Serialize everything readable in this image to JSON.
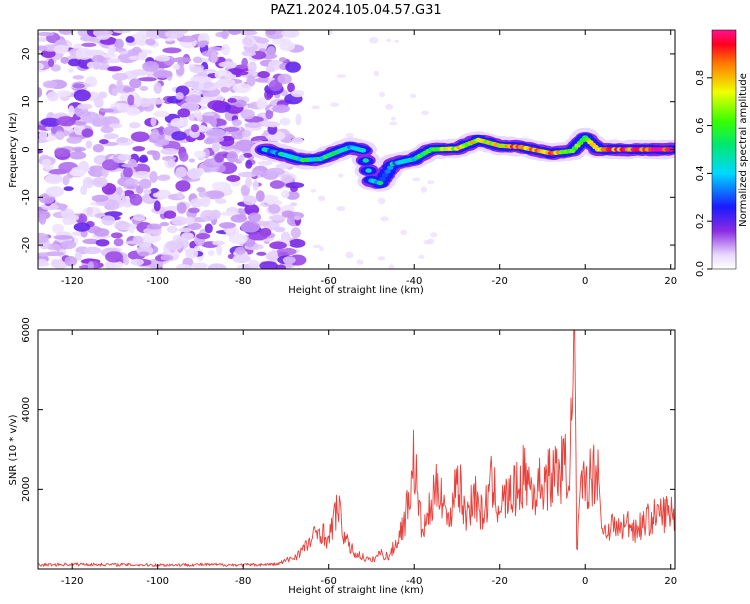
{
  "title": "PAZ1.2024.105.04.57.G31",
  "chart_data": [
    {
      "type": "heatmap",
      "xlabel": "Height of straight line (km)",
      "ylabel": "Frequency (Hz)",
      "xlim": [
        -128,
        21
      ],
      "ylim": [
        -25,
        25
      ],
      "xticks": [
        -120,
        -100,
        -80,
        -60,
        -40,
        -20,
        0,
        20
      ],
      "yticks": [
        -20,
        -10,
        0,
        10,
        20
      ],
      "colorbar": {
        "label": "Normalized spectral amplitude",
        "range": [
          0,
          1
        ],
        "ticks": [
          "0.0",
          "0.2",
          "0.4",
          "0.6",
          "0.8"
        ],
        "colormap": "rainbow (white-violet-blue-cyan-green-yellow-red-magenta)"
      },
      "ridge": {
        "description_values": [
          {
            "x": -75,
            "f": 0.0,
            "amp": 0.35
          },
          {
            "x": -66,
            "f": -2.2,
            "amp": 0.5
          },
          {
            "x": -62,
            "f": -2.0,
            "amp": 0.5
          },
          {
            "x": -58,
            "f": -0.5,
            "amp": 0.5
          },
          {
            "x": -55,
            "f": 0.5,
            "amp": 0.45
          },
          {
            "x": -52,
            "f": -0.2,
            "amp": 0.45
          },
          {
            "x": -50,
            "f": -6.5,
            "amp": 0.4
          },
          {
            "x": -48,
            "f": -7.0,
            "amp": 0.4
          },
          {
            "x": -45,
            "f": -3.0,
            "amp": 0.4
          },
          {
            "x": -40,
            "f": -2.0,
            "amp": 0.45
          },
          {
            "x": -36,
            "f": 0.0,
            "amp": 0.6
          },
          {
            "x": -30,
            "f": 0.2,
            "amp": 0.75
          },
          {
            "x": -25,
            "f": 2.0,
            "amp": 0.7
          },
          {
            "x": -20,
            "f": 0.8,
            "amp": 0.75
          },
          {
            "x": -15,
            "f": 0.5,
            "amp": 0.85
          },
          {
            "x": -8,
            "f": -0.8,
            "amp": 0.85
          },
          {
            "x": -3,
            "f": -0.3,
            "amp": 0.55
          },
          {
            "x": 0,
            "f": 2.5,
            "amp": 0.6
          },
          {
            "x": 3,
            "f": 0.0,
            "amp": 0.85
          },
          {
            "x": 10,
            "f": 0.0,
            "amp": 0.9
          },
          {
            "x": 20,
            "f": 0.0,
            "amp": 0.95
          }
        ],
        "noise_region_x": [
          -128,
          -67
        ]
      }
    },
    {
      "type": "line",
      "xlabel": "Height of straight line (km)",
      "ylabel": "SNR (10 * v/v)",
      "xlim": [
        -128,
        21
      ],
      "ylim": [
        0,
        6000
      ],
      "xticks": [
        -120,
        -100,
        -80,
        -60,
        -40,
        -20,
        0,
        20
      ],
      "yticks": [
        2000,
        4000,
        6000
      ],
      "color": "#e8403a",
      "series": [
        {
          "x": [
            -128,
            -120,
            -110,
            -100,
            -90,
            -80,
            -72,
            -68,
            -65,
            -62,
            -60,
            -58,
            -56,
            -54,
            -52,
            -50,
            -48,
            -46,
            -44,
            -42,
            -40,
            -39,
            -38,
            -36,
            -34,
            -32,
            -30,
            -28,
            -26,
            -24,
            -22,
            -20,
            -18,
            -16,
            -14,
            -12,
            -10,
            -8,
            -6,
            -4,
            -3,
            -2.5,
            -2,
            -1,
            0,
            2,
            3,
            4,
            6,
            8,
            10,
            12,
            14,
            16,
            18,
            21
          ],
          "y": [
            100,
            120,
            110,
            100,
            110,
            100,
            120,
            300,
            600,
            1000,
            700,
            1600,
            700,
            400,
            300,
            200,
            400,
            300,
            700,
            1300,
            2800,
            1600,
            900,
            1600,
            2200,
            1100,
            2400,
            1300,
            1900,
            1300,
            2100,
            1600,
            1800,
            2000,
            2400,
            1900,
            2200,
            2300,
            2500,
            2600,
            3600,
            5900,
            400,
            1900,
            2200,
            2400,
            2600,
            900,
            1100,
            1000,
            1150,
            1000,
            1200,
            1300,
            1400,
            1400
          ]
        }
      ]
    }
  ]
}
